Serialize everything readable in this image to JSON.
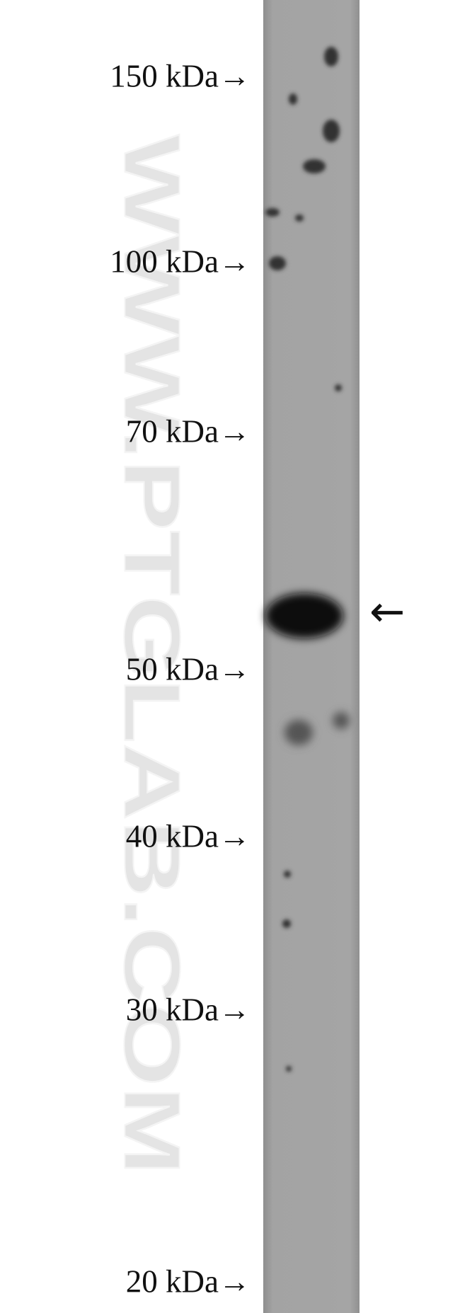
{
  "watermark": "WWW.PTGLAB.COM",
  "markers": [
    "150 kDa→",
    "100 kDa→",
    "70 kDa→",
    "50 kDa→",
    "40 kDa→",
    "30 kDa→",
    "20 kDa→"
  ],
  "band_arrow": "←"
}
